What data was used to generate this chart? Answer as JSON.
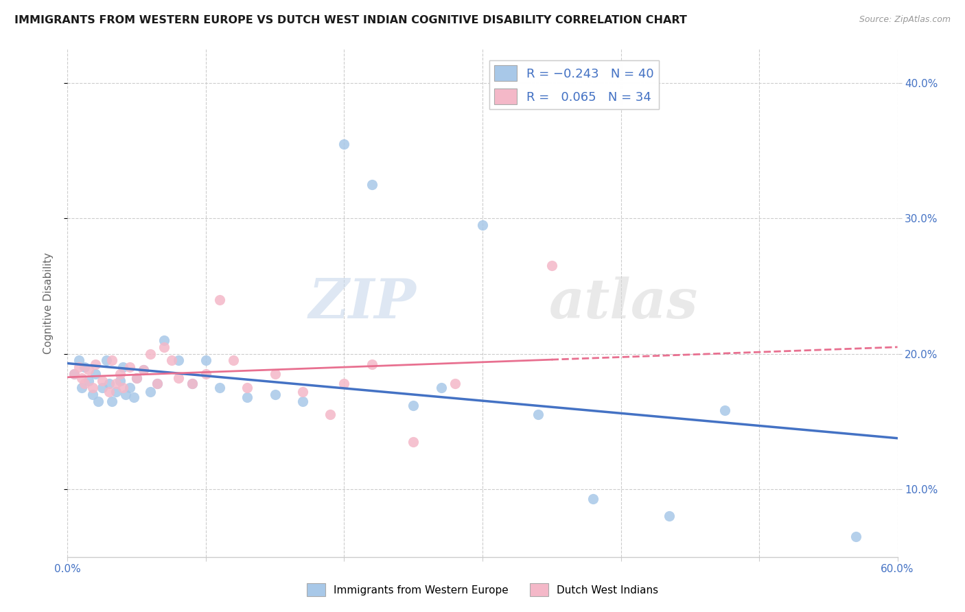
{
  "title": "IMMIGRANTS FROM WESTERN EUROPE VS DUTCH WEST INDIAN COGNITIVE DISABILITY CORRELATION CHART",
  "source_text": "Source: ZipAtlas.com",
  "ylabel": "Cognitive Disability",
  "xlim": [
    0.0,
    0.6
  ],
  "ylim": [
    0.05,
    0.425
  ],
  "x_ticks": [
    0.0,
    0.1,
    0.2,
    0.3,
    0.4,
    0.5,
    0.6
  ],
  "y_ticks": [
    0.1,
    0.2,
    0.3,
    0.4
  ],
  "blue_color": "#a8c8e8",
  "pink_color": "#f4b8c8",
  "blue_line_color": "#4472c4",
  "pink_line_color": "#e87090",
  "watermark_text": "ZIPatlas",
  "background_color": "#ffffff",
  "grid_color": "#cccccc",
  "blue_x": [
    0.005,
    0.008,
    0.01,
    0.012,
    0.015,
    0.018,
    0.02,
    0.022,
    0.025,
    0.028,
    0.03,
    0.032,
    0.035,
    0.038,
    0.04,
    0.042,
    0.045,
    0.048,
    0.05,
    0.055,
    0.06,
    0.065,
    0.07,
    0.08,
    0.09,
    0.1,
    0.11,
    0.13,
    0.15,
    0.17,
    0.2,
    0.22,
    0.25,
    0.27,
    0.3,
    0.34,
    0.38,
    0.435,
    0.475,
    0.57
  ],
  "blue_y": [
    0.185,
    0.195,
    0.175,
    0.19,
    0.18,
    0.17,
    0.185,
    0.165,
    0.175,
    0.195,
    0.178,
    0.165,
    0.172,
    0.18,
    0.19,
    0.17,
    0.175,
    0.168,
    0.182,
    0.188,
    0.172,
    0.178,
    0.21,
    0.195,
    0.178,
    0.195,
    0.175,
    0.168,
    0.17,
    0.165,
    0.355,
    0.325,
    0.162,
    0.175,
    0.295,
    0.155,
    0.093,
    0.08,
    0.158,
    0.065
  ],
  "pink_x": [
    0.005,
    0.008,
    0.01,
    0.012,
    0.015,
    0.018,
    0.02,
    0.025,
    0.03,
    0.032,
    0.035,
    0.038,
    0.04,
    0.045,
    0.05,
    0.055,
    0.06,
    0.065,
    0.07,
    0.075,
    0.08,
    0.09,
    0.1,
    0.11,
    0.12,
    0.13,
    0.15,
    0.17,
    0.19,
    0.2,
    0.22,
    0.25,
    0.28,
    0.35
  ],
  "pink_y": [
    0.185,
    0.19,
    0.182,
    0.178,
    0.188,
    0.175,
    0.192,
    0.18,
    0.172,
    0.195,
    0.178,
    0.185,
    0.175,
    0.19,
    0.182,
    0.188,
    0.2,
    0.178,
    0.205,
    0.195,
    0.182,
    0.178,
    0.185,
    0.24,
    0.195,
    0.175,
    0.185,
    0.172,
    0.155,
    0.178,
    0.192,
    0.135,
    0.178,
    0.265
  ]
}
